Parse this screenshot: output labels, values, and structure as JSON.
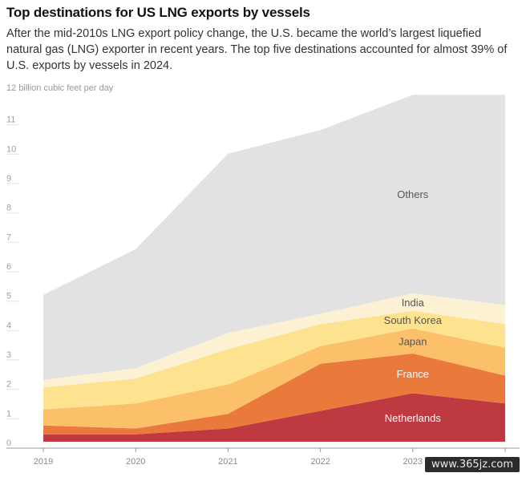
{
  "title": "Top destinations for US LNG exports by vessels",
  "subtitle": "After the mid-2010s LNG export policy change, the U.S. became the world’s largest liquefied natural gas (LNG) exporter in recent years. The top five destinations accounted for almost 39% of U.S. exports by vessels in 2024.",
  "watermark": "www.365jz.com",
  "chart_data": {
    "type": "area",
    "stacked": true,
    "ylabel": "12 billion cubic feet per day",
    "ylim": [
      0,
      12
    ],
    "yticks": [
      0,
      1,
      2,
      3,
      4,
      5,
      6,
      7,
      8,
      9,
      10,
      11
    ],
    "x": [
      2019,
      2020,
      2021,
      2022,
      2023,
      2024
    ],
    "xtick_labels": [
      "2019",
      "2020",
      "2021",
      "2022",
      "2023",
      "2024"
    ],
    "grid": false,
    "series": [
      {
        "name": "Netherlands",
        "color": "#bf3a40",
        "label_color": "#ffffff",
        "values": [
          0.25,
          0.25,
          0.45,
          1.05,
          1.65,
          1.3
        ]
      },
      {
        "name": "France",
        "color": "#ea7a3c",
        "label_color": "#ffffff",
        "values": [
          0.3,
          0.2,
          0.5,
          1.6,
          1.35,
          0.95
        ]
      },
      {
        "name": "Japan",
        "color": "#fdc06a",
        "label_color": "#555555",
        "values": [
          0.55,
          0.85,
          1.0,
          0.6,
          0.85,
          0.95
        ]
      },
      {
        "name": "South Korea",
        "color": "#fde38f",
        "label_color": "#555555",
        "values": [
          0.75,
          0.85,
          1.2,
          0.75,
          0.6,
          0.8
        ]
      },
      {
        "name": "India",
        "color": "#fdf1d4",
        "label_color": "#555555",
        "values": [
          0.25,
          0.35,
          0.55,
          0.35,
          0.6,
          0.65
        ]
      },
      {
        "name": "Others",
        "color": "#e2e2e2",
        "label_color": "#555555",
        "values": [
          2.9,
          4.05,
          6.1,
          6.25,
          6.75,
          7.15
        ]
      }
    ]
  }
}
